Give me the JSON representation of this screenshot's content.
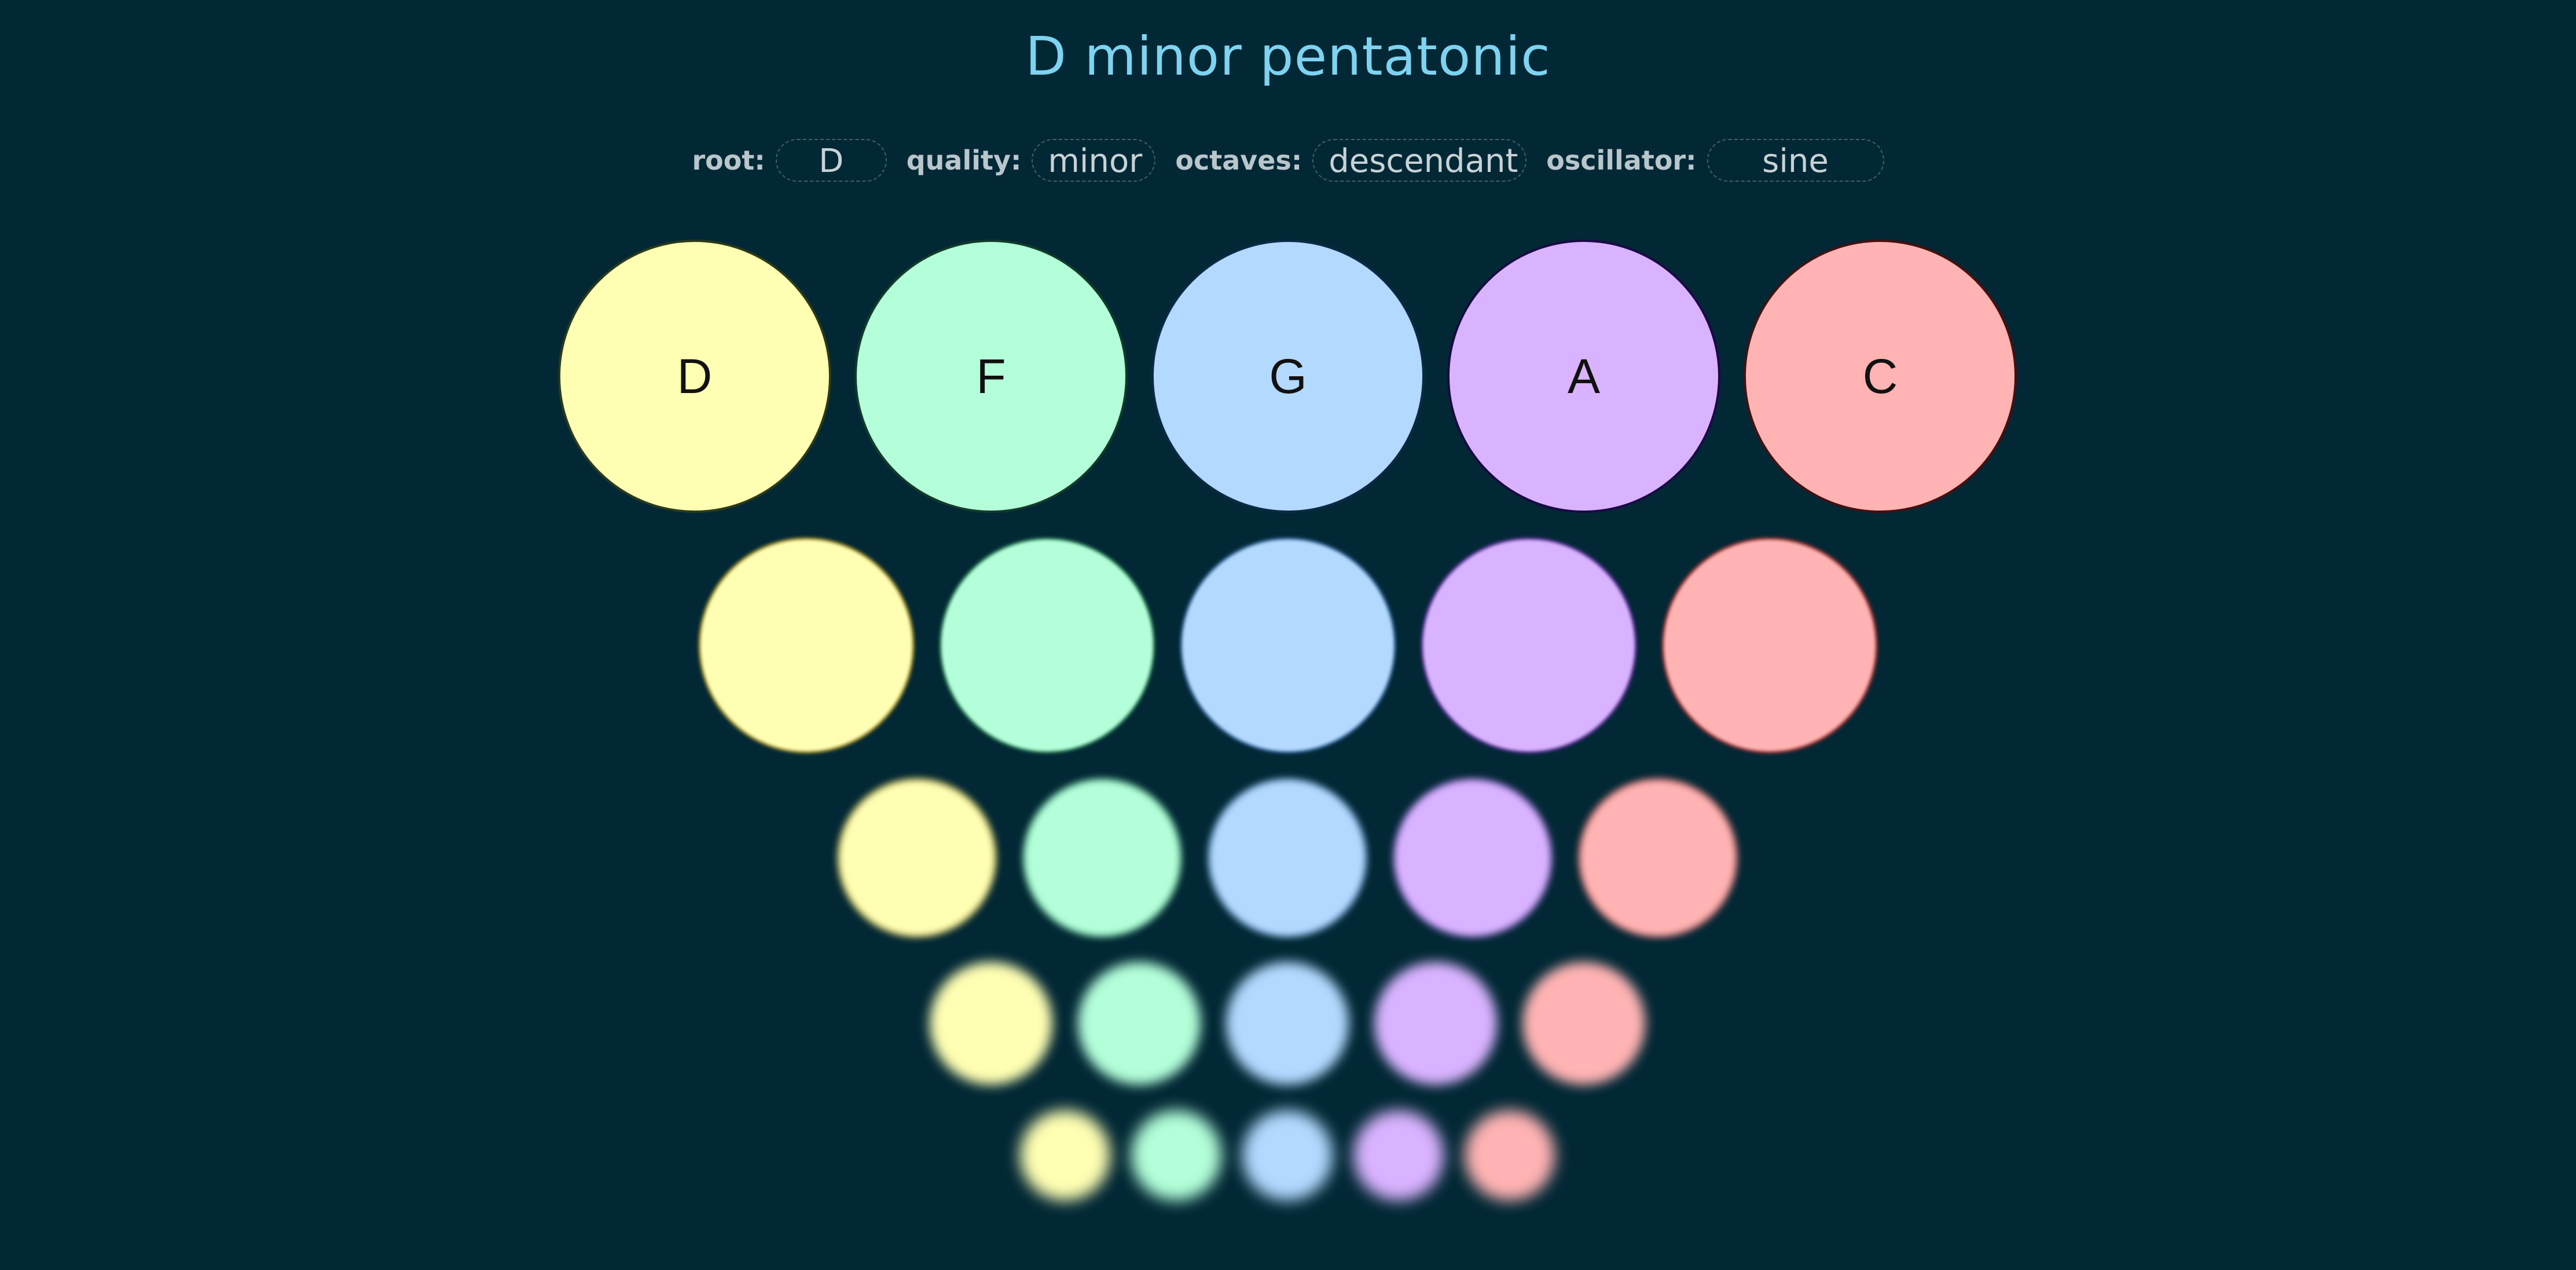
{
  "title": "D minor pentatonic",
  "controls": {
    "root": {
      "label": "root:",
      "value": "D"
    },
    "quality": {
      "label": "quality:",
      "value": "minor"
    },
    "octaves": {
      "label": "octaves:",
      "value": "descendant"
    },
    "oscillator": {
      "label": "oscillator:",
      "value": "sine"
    }
  },
  "notes": [
    "D",
    "F",
    "G",
    "A",
    "C"
  ],
  "note_colors": {
    "D": "#ffffb3",
    "F": "#b3ffd9",
    "G": "#b3d9ff",
    "A": "#d9b3ff",
    "C": "#ffb3b3"
  },
  "octave_rows": 5
}
